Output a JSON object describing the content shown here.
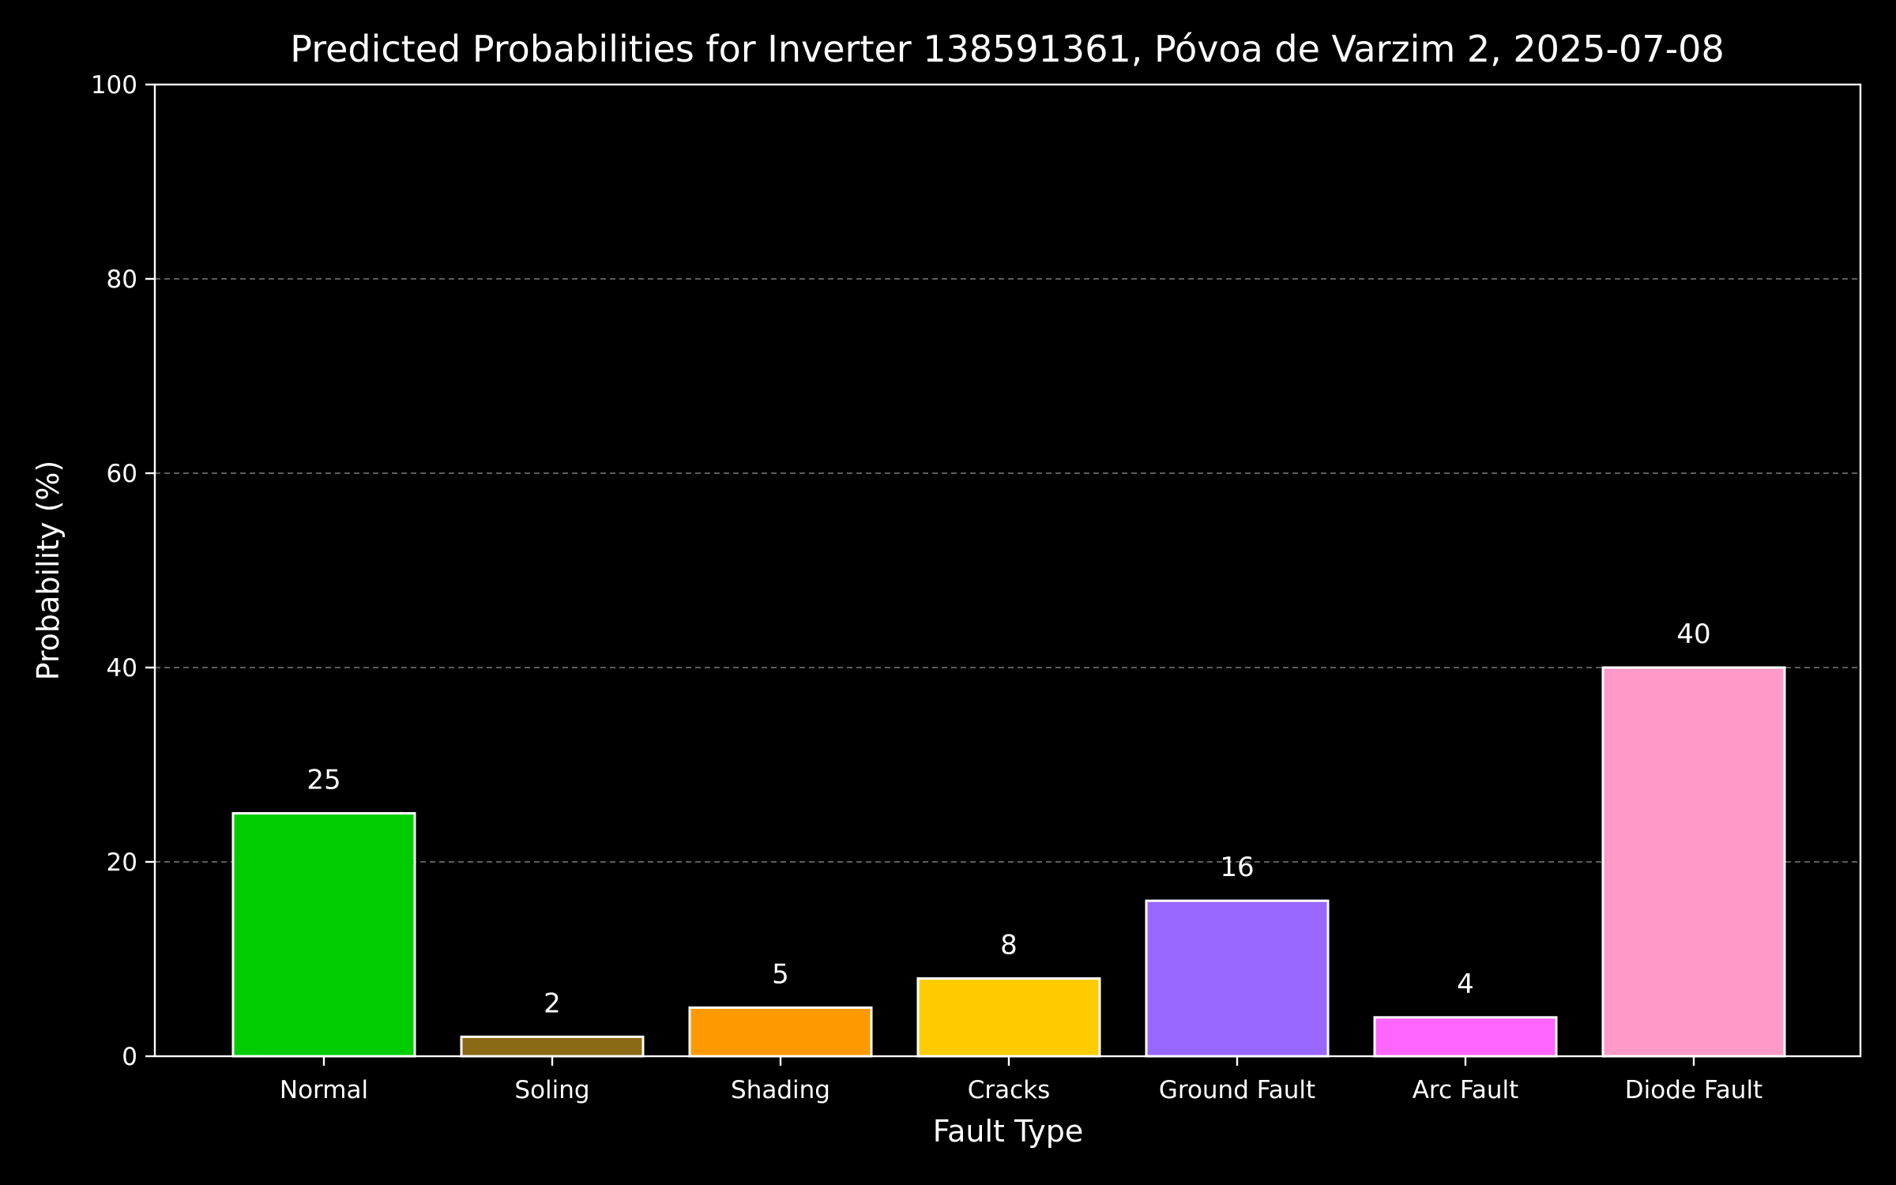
{
  "chart_data": {
    "type": "bar",
    "title": "Predicted Probabilities for Inverter 138591361, Póvoa de Varzim 2, 2025-07-08",
    "xlabel": "Fault Type",
    "ylabel": "Probability (%)",
    "ylim": [
      0,
      100
    ],
    "yticks": [
      0,
      20,
      40,
      60,
      80,
      100
    ],
    "grid": "y-dashed",
    "legend": "none",
    "categories": [
      "Normal",
      "Soling",
      "Shading",
      "Cracks",
      "Ground Fault",
      "Arc Fault",
      "Diode Fault"
    ],
    "values": [
      25,
      2,
      5,
      8,
      16,
      4,
      40
    ],
    "data_labels": [
      "25",
      "2",
      "5",
      "8",
      "16",
      "4",
      "40"
    ],
    "colors": [
      "#00cc00",
      "#8b6914",
      "#ff9900",
      "#ffcc00",
      "#9966ff",
      "#ff66ff",
      "#ff99c8"
    ],
    "background": "#000000",
    "foreground": "#ffffff"
  }
}
